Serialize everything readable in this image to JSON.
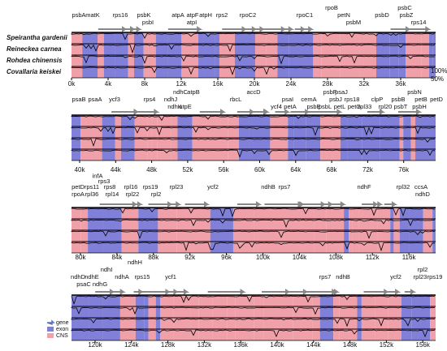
{
  "species": [
    "Speirantha gardenii",
    "Reineckea carnea",
    "Rohdea chinensis",
    "Covallaria keiskei"
  ],
  "identity_labels": [
    "100%",
    "50%"
  ],
  "panels": [
    {
      "genes": [
        "psbA",
        "matK",
        "rps16",
        "psbK",
        "psbI",
        "atpA",
        "atpF",
        "atpH",
        "atpI",
        "rps2",
        "rpoC2",
        "rpoC1",
        "rpoB",
        "petN",
        "psbM",
        "psbD",
        "psbC",
        "psbZ",
        "rps14"
      ],
      "ticks": [
        "0k",
        "4k",
        "8k",
        "12k",
        "16k",
        "20k",
        "24k",
        "28k",
        "32k",
        "36k"
      ]
    },
    {
      "genes": [
        "psaB",
        "psaA",
        "ycf3",
        "rps4",
        "ndhJ",
        "ndhC",
        "ndhK",
        "atpB",
        "atpE",
        "rbcL",
        "accD",
        "psaI",
        "ycf4",
        "cemA",
        "petA",
        "psbF",
        "psbE",
        "psbJ",
        "psbL",
        "petL",
        "petG",
        "psaJ",
        "rps18",
        "rpl33",
        "rpl20",
        "clpP",
        "psbN",
        "psbB",
        "psbT",
        "petB",
        "psbH",
        "petD"
      ],
      "ticks": [
        "40k",
        "44k",
        "48k",
        "52k",
        "56k",
        "60k",
        "64k",
        "68k",
        "72k",
        "76k"
      ]
    },
    {
      "genes": [
        "infA",
        "rps3",
        "petD",
        "rps11",
        "rps8",
        "rpl16",
        "rps19",
        "rpl23",
        "rpoA",
        "rpl36",
        "rpl14",
        "rpl22",
        "rpl2",
        "ycf2",
        "ndhB",
        "rps7",
        "ndhF",
        "rpl32",
        "ccsA",
        "ndhD"
      ],
      "ticks": [
        "80k",
        "84k",
        "88k",
        "92k",
        "96k",
        "100k",
        "104k",
        "108k",
        "112k",
        "116k"
      ]
    },
    {
      "genes": [
        "ndhI",
        "ndhH",
        "ndhD",
        "ndhE",
        "ndhA",
        "rps15",
        "ycf1",
        "psaC",
        "ndhG",
        "rps7",
        "ndhB",
        "ycf2",
        "rpl2",
        "rpl23",
        "rps19"
      ],
      "ticks": [
        "120k",
        "124k",
        "128k",
        "132k",
        "136k",
        "140k",
        "144k",
        "148k",
        "152k",
        "156k"
      ]
    }
  ],
  "legend": [
    "gene",
    "exon",
    "CNS"
  ]
}
